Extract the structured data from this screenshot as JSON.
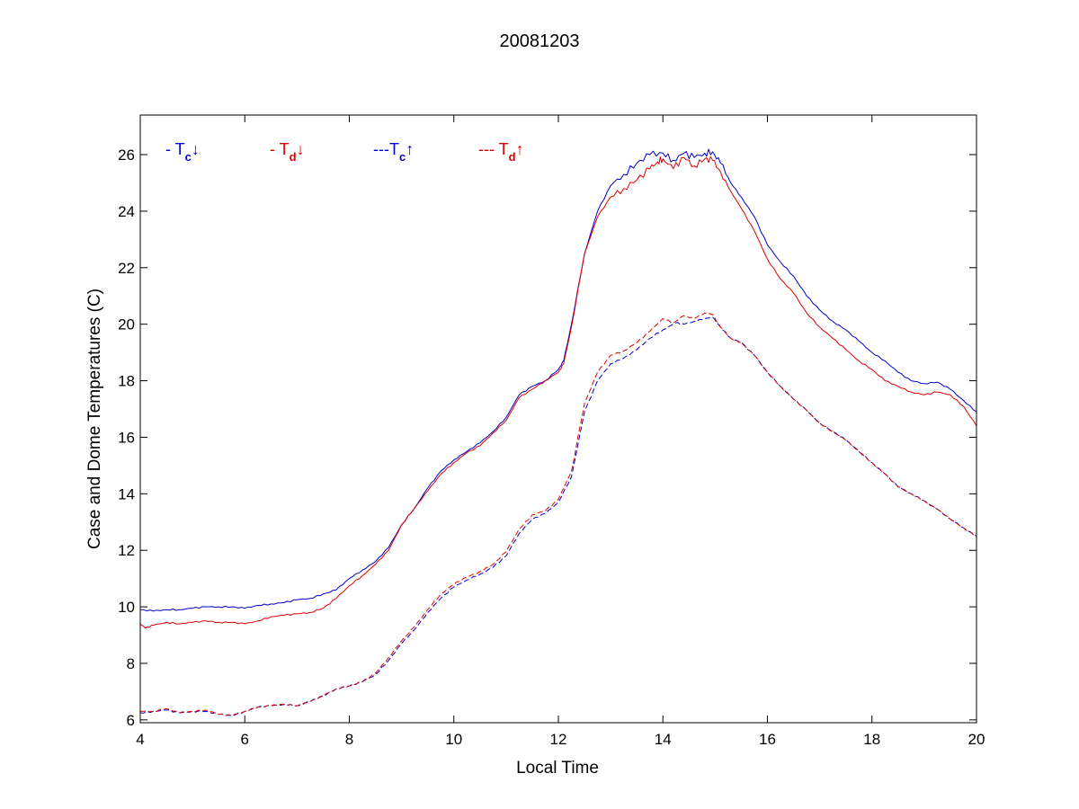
{
  "chart_data": {
    "type": "line",
    "title": "20081203",
    "xlabel": "Local Time",
    "ylabel": "Case and Dome Temperatures (C)",
    "xlim": [
      4,
      20
    ],
    "ylim": [
      5.9,
      27.4
    ],
    "xticks": [
      4,
      6,
      8,
      10,
      12,
      14,
      16,
      18,
      20
    ],
    "yticks": [
      6,
      8,
      10,
      12,
      14,
      16,
      18,
      20,
      22,
      24,
      26
    ],
    "grid": false,
    "legend_position": "top-left",
    "legend": [
      {
        "prefix": "- T",
        "sub": "c",
        "arrow": "↓",
        "color": "#0000cc"
      },
      {
        "prefix": "- T",
        "sub": "d",
        "arrow": "↓",
        "color": "#dd0000"
      },
      {
        "prefix": "---T",
        "sub": "c",
        "arrow": "↑",
        "color": "#0000cc"
      },
      {
        "prefix": "--- T",
        "sub": "d",
        "arrow": "↑",
        "color": "#dd0000"
      }
    ],
    "series": [
      {
        "color": "#0000cc",
        "dash": "solid",
        "x": [
          4.0,
          4.25,
          4.5,
          4.75,
          5.0,
          5.25,
          5.5,
          5.75,
          6.0,
          6.25,
          6.5,
          6.75,
          7.0,
          7.25,
          7.5,
          7.75,
          8.0,
          8.25,
          8.5,
          8.75,
          9.0,
          9.25,
          9.5,
          9.75,
          10.0,
          10.25,
          10.5,
          10.75,
          11.0,
          11.25,
          11.5,
          11.75,
          12.0,
          12.1,
          12.25,
          12.5,
          12.75,
          13.0,
          13.25,
          13.5,
          13.75,
          14.0,
          14.2,
          14.4,
          14.6,
          14.8,
          14.95,
          15.1,
          15.3,
          15.5,
          15.75,
          16.0,
          16.25,
          16.5,
          16.75,
          17.0,
          17.25,
          17.5,
          17.75,
          18.0,
          18.25,
          18.5,
          18.75,
          19.0,
          19.25,
          19.5,
          19.75,
          20.0
        ],
        "y": [
          9.9,
          9.85,
          9.9,
          9.9,
          9.95,
          10.0,
          10.0,
          10.0,
          9.95,
          10.05,
          10.1,
          10.15,
          10.25,
          10.3,
          10.45,
          10.6,
          11.0,
          11.3,
          11.6,
          12.1,
          12.9,
          13.5,
          14.2,
          14.8,
          15.2,
          15.5,
          15.8,
          16.2,
          16.7,
          17.5,
          17.8,
          18.0,
          18.4,
          18.7,
          20.0,
          22.5,
          24.0,
          24.9,
          25.3,
          25.7,
          26.0,
          26.05,
          25.8,
          26.05,
          25.9,
          26.05,
          26.1,
          25.7,
          25.0,
          24.5,
          23.8,
          22.8,
          22.2,
          21.7,
          21.0,
          20.5,
          20.1,
          19.8,
          19.4,
          19.0,
          18.7,
          18.3,
          18.0,
          17.9,
          17.95,
          17.7,
          17.3,
          16.9
        ]
      },
      {
        "color": "#dd0000",
        "dash": "solid",
        "x": [
          4.0,
          4.1,
          4.25,
          4.5,
          4.75,
          5.0,
          5.25,
          5.5,
          5.75,
          6.0,
          6.25,
          6.5,
          6.75,
          7.0,
          7.25,
          7.5,
          7.75,
          8.0,
          8.25,
          8.5,
          8.75,
          9.0,
          9.25,
          9.5,
          9.75,
          10.0,
          10.25,
          10.5,
          10.75,
          11.0,
          11.25,
          11.5,
          11.75,
          12.0,
          12.1,
          12.25,
          12.5,
          12.75,
          13.0,
          13.25,
          13.5,
          13.75,
          13.9,
          14.0,
          14.2,
          14.4,
          14.6,
          14.8,
          14.95,
          15.1,
          15.3,
          15.5,
          15.75,
          16.0,
          16.25,
          16.5,
          16.75,
          17.0,
          17.25,
          17.5,
          17.75,
          18.0,
          18.25,
          18.5,
          18.75,
          19.0,
          19.25,
          19.5,
          19.75,
          20.0
        ],
        "y": [
          9.4,
          9.25,
          9.35,
          9.45,
          9.4,
          9.45,
          9.5,
          9.45,
          9.45,
          9.4,
          9.5,
          9.65,
          9.7,
          9.75,
          9.8,
          9.95,
          10.3,
          10.75,
          11.1,
          11.5,
          12.0,
          12.9,
          13.5,
          14.1,
          14.7,
          15.1,
          15.45,
          15.7,
          16.15,
          16.6,
          17.4,
          17.7,
          18.0,
          18.3,
          18.6,
          19.9,
          22.5,
          23.8,
          24.5,
          24.8,
          25.1,
          25.5,
          25.75,
          25.85,
          25.5,
          25.9,
          25.6,
          25.85,
          25.8,
          25.4,
          24.7,
          24.1,
          23.3,
          22.3,
          21.6,
          21.1,
          20.4,
          19.9,
          19.5,
          19.1,
          18.7,
          18.4,
          18.0,
          17.8,
          17.6,
          17.5,
          17.6,
          17.5,
          17.1,
          16.4
        ]
      },
      {
        "color": "#0000cc",
        "dash": "dashed",
        "x": [
          4.0,
          4.25,
          4.5,
          4.75,
          5.0,
          5.25,
          5.5,
          5.75,
          6.0,
          6.25,
          6.5,
          6.75,
          7.0,
          7.25,
          7.5,
          7.75,
          8.0,
          8.25,
          8.5,
          8.75,
          9.0,
          9.25,
          9.5,
          9.75,
          10.0,
          10.25,
          10.5,
          10.75,
          11.0,
          11.25,
          11.5,
          11.75,
          12.0,
          12.25,
          12.5,
          12.75,
          13.0,
          13.25,
          13.5,
          13.75,
          14.0,
          14.25,
          14.4,
          14.6,
          14.8,
          14.95,
          15.1,
          15.3,
          15.5,
          15.75,
          16.0,
          16.25,
          16.5,
          16.75,
          17.0,
          17.25,
          17.5,
          17.75,
          18.0,
          18.25,
          18.5,
          18.75,
          19.0,
          19.25,
          19.5,
          19.75,
          20.0
        ],
        "y": [
          6.25,
          6.3,
          6.35,
          6.25,
          6.3,
          6.3,
          6.2,
          6.15,
          6.3,
          6.45,
          6.5,
          6.55,
          6.5,
          6.65,
          6.85,
          7.1,
          7.2,
          7.35,
          7.6,
          8.1,
          8.7,
          9.2,
          9.8,
          10.3,
          10.7,
          10.95,
          11.15,
          11.4,
          11.8,
          12.6,
          13.1,
          13.3,
          13.7,
          14.6,
          16.9,
          18.0,
          18.6,
          18.8,
          19.1,
          19.5,
          19.8,
          20.05,
          20.0,
          20.1,
          20.2,
          20.25,
          19.9,
          19.5,
          19.35,
          18.9,
          18.3,
          17.8,
          17.35,
          16.95,
          16.5,
          16.2,
          15.9,
          15.5,
          15.1,
          14.7,
          14.25,
          14.0,
          13.75,
          13.45,
          13.1,
          12.8,
          12.5
        ]
      },
      {
        "color": "#dd0000",
        "dash": "dashed",
        "x": [
          4.0,
          4.25,
          4.5,
          4.75,
          5.0,
          5.25,
          5.5,
          5.75,
          6.0,
          6.25,
          6.5,
          6.75,
          7.0,
          7.25,
          7.5,
          7.75,
          8.0,
          8.25,
          8.5,
          8.75,
          9.0,
          9.25,
          9.5,
          9.75,
          10.0,
          10.25,
          10.5,
          10.75,
          11.0,
          11.25,
          11.5,
          11.75,
          12.0,
          12.25,
          12.5,
          12.75,
          13.0,
          13.25,
          13.5,
          13.75,
          14.0,
          14.2,
          14.4,
          14.6,
          14.8,
          14.95,
          15.1,
          15.3,
          15.5,
          15.75,
          16.0,
          16.25,
          16.5,
          16.75,
          17.0,
          17.25,
          17.5,
          17.75,
          18.0,
          18.25,
          18.5,
          18.75,
          19.0,
          19.25,
          19.5,
          19.75,
          20.0
        ],
        "y": [
          6.3,
          6.3,
          6.4,
          6.25,
          6.3,
          6.35,
          6.2,
          6.15,
          6.3,
          6.45,
          6.5,
          6.55,
          6.5,
          6.65,
          6.85,
          7.1,
          7.2,
          7.35,
          7.65,
          8.2,
          8.8,
          9.3,
          9.9,
          10.45,
          10.8,
          11.05,
          11.25,
          11.5,
          11.95,
          12.75,
          13.25,
          13.4,
          13.8,
          14.8,
          17.2,
          18.3,
          18.9,
          19.05,
          19.35,
          19.75,
          20.2,
          20.05,
          20.3,
          20.2,
          20.4,
          20.35,
          19.9,
          19.5,
          19.35,
          18.9,
          18.3,
          17.8,
          17.35,
          16.95,
          16.5,
          16.2,
          15.9,
          15.5,
          15.1,
          14.7,
          14.25,
          14.0,
          13.75,
          13.45,
          13.1,
          12.8,
          12.5
        ]
      }
    ]
  }
}
